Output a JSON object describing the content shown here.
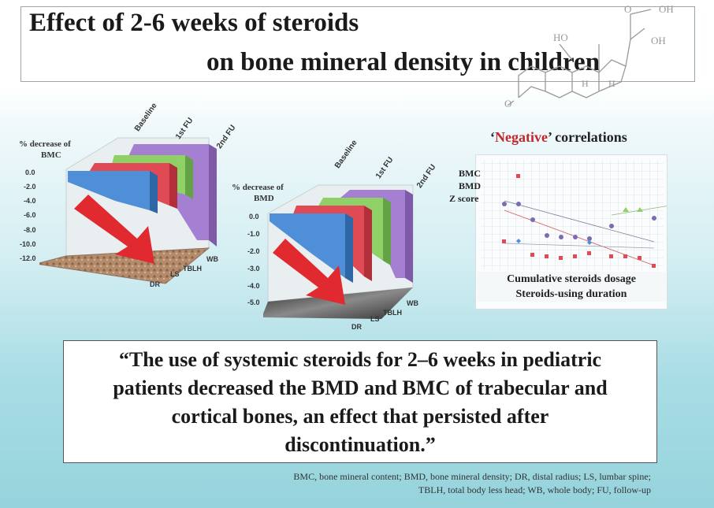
{
  "title": {
    "line1": "Effect of 2-6 weeks of steroids",
    "line2": "on bone mineral density in children"
  },
  "molecule": {
    "labels": [
      "O",
      "OH",
      "HO",
      "OH",
      "H",
      "H",
      "O"
    ]
  },
  "chart_bmc": {
    "ylabel_1": "% decrease of",
    "ylabel_2": "BMC",
    "yticks": [
      "0.0",
      "-2.0",
      "-4.0",
      "-6.0",
      "-8.0",
      "-10.0",
      "-12.0"
    ],
    "series": [
      "Baseline",
      "1st FU",
      "2nd FU"
    ],
    "sites": [
      "DR",
      "LS",
      "TBLH",
      "WB"
    ]
  },
  "chart_bmd": {
    "ylabel_1": "% decrease of",
    "ylabel_2": "BMD",
    "yticks": [
      "0.0",
      "-1.0",
      "-2.0",
      "-3.0",
      "-4.0",
      "-5.0"
    ],
    "series": [
      "Baseline",
      "1st FU",
      "2nd FU"
    ],
    "sites": [
      "DR",
      "LS",
      "TBLH",
      "WB"
    ]
  },
  "correlations": {
    "title_open": "‘",
    "title_neg": "Negative",
    "title_rest": "’ correlations",
    "rows": [
      "BMC",
      "BMD",
      "Z score"
    ],
    "caption_1": "Cumulative steroids dosage",
    "caption_2": "Steroids-using duration"
  },
  "quote": {
    "line1": "“The use of systemic steroids for 2–6 weeks in pediatric",
    "line2": "patients decreased the BMD and BMC of trabecular and",
    "line3": "cortical bones, an effect that persisted after",
    "line4": "discontinuation.”"
  },
  "footnote": {
    "line1": "BMC, bone mineral content; BMD, bone mineral density; DR, distal radius; LS, lumbar spine;",
    "line2": "TBLH, total body less head; WB, whole body; FU, follow-up"
  },
  "colors": {
    "blue": "#4f8fd8",
    "red": "#e04a55",
    "green": "#8fd067",
    "purple": "#a57fd2",
    "arrow": "#e02a2f",
    "negative": "#c0272d"
  }
}
